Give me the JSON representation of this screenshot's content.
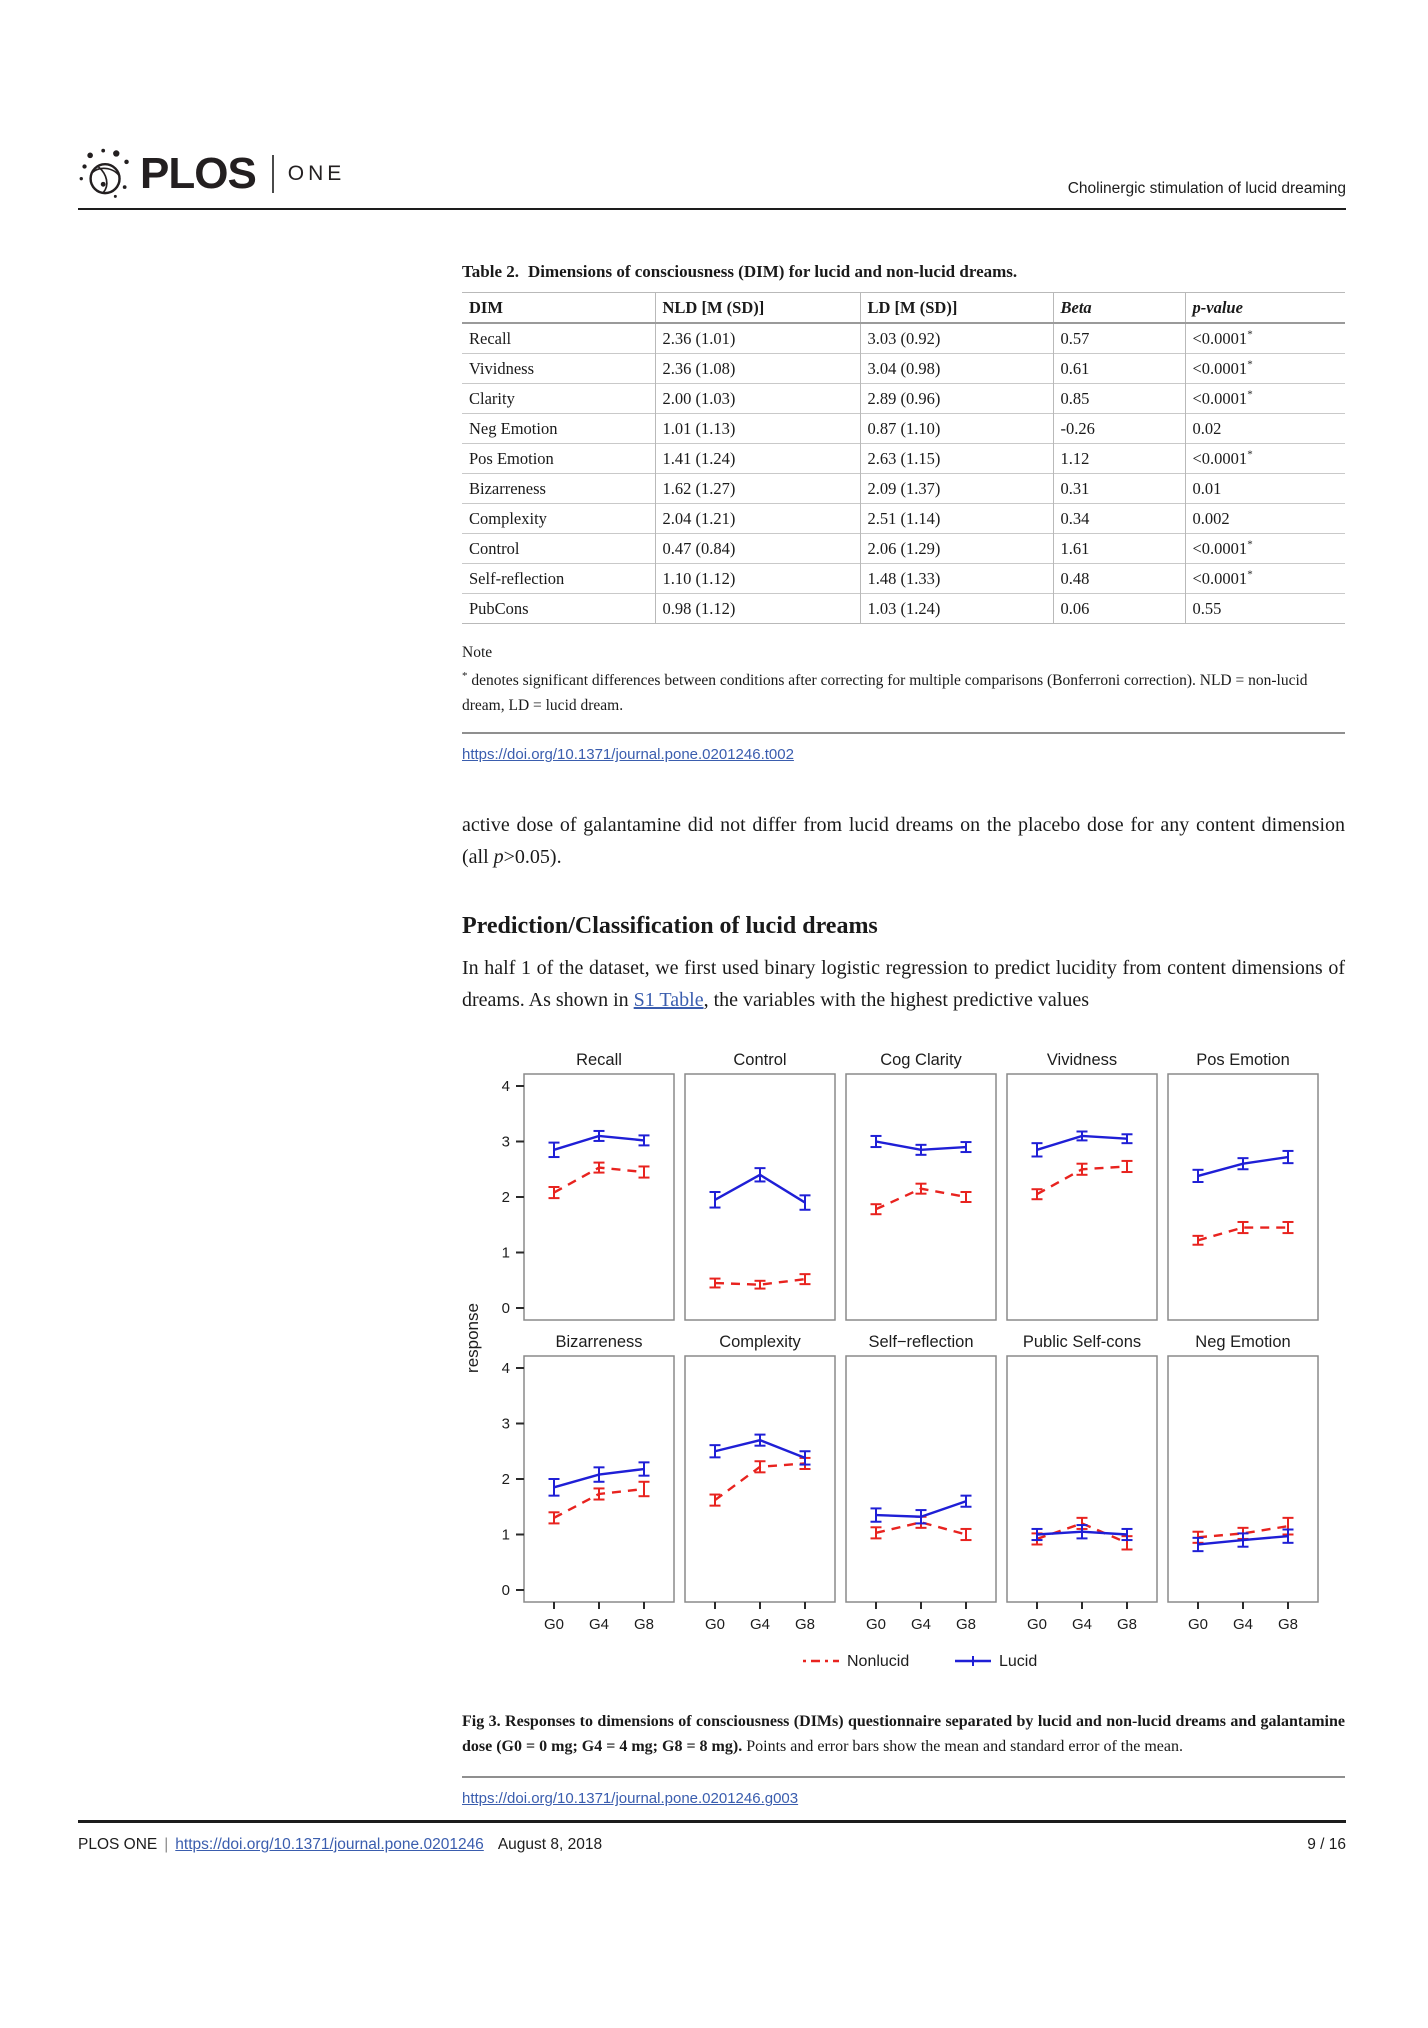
{
  "header": {
    "logo_plos": "PLOS",
    "logo_one": "ONE",
    "running_title": "Cholinergic stimulation of lucid dreaming"
  },
  "table": {
    "title_label": "Table 2.",
    "title_text": "Dimensions of consciousness (DIM) for lucid and non-lucid dreams.",
    "columns": [
      "DIM",
      "NLD [M (SD)]",
      "LD [M (SD)]",
      "Beta",
      "p-value"
    ],
    "rows": [
      [
        "Recall",
        "2.36 (1.01)",
        "3.03 (0.92)",
        "0.57",
        "<0.0001*"
      ],
      [
        "Vividness",
        "2.36 (1.08)",
        "3.04 (0.98)",
        "0.61",
        "<0.0001*"
      ],
      [
        "Clarity",
        "2.00 (1.03)",
        "2.89 (0.96)",
        "0.85",
        "<0.0001*"
      ],
      [
        "Neg Emotion",
        "1.01 (1.13)",
        "0.87 (1.10)",
        "-0.26",
        "0.02"
      ],
      [
        "Pos Emotion",
        "1.41 (1.24)",
        "2.63 (1.15)",
        "1.12",
        "<0.0001*"
      ],
      [
        "Bizarreness",
        "1.62 (1.27)",
        "2.09 (1.37)",
        "0.31",
        "0.01"
      ],
      [
        "Complexity",
        "2.04 (1.21)",
        "2.51 (1.14)",
        "0.34",
        "0.002"
      ],
      [
        "Control",
        "0.47 (0.84)",
        "2.06 (1.29)",
        "1.61",
        "<0.0001*"
      ],
      [
        "Self-reflection",
        "1.10 (1.12)",
        "1.48 (1.33)",
        "0.48",
        "<0.0001*"
      ],
      [
        "PubCons",
        "0.98 (1.12)",
        "1.03 (1.24)",
        "0.06",
        "0.55"
      ]
    ],
    "note_label": "Note",
    "note_star": "*",
    "note_text": " denotes significant differences between conditions after correcting for multiple comparisons (Bonferroni correction). NLD = non-lucid dream, LD = lucid dream.",
    "doi_link": "https://doi.org/10.1371/journal.pone.0201246.t002"
  },
  "body": {
    "para1_pre": "active dose of galantamine did not differ from lucid dreams on the placebo dose for any content dimension (all ",
    "para1_italic": "p",
    "para1_post": ">0.05).",
    "section_heading": "Prediction/Classification of lucid dreams",
    "para2_pre": "In half 1 of the dataset, we first used binary logistic regression to predict lucidity from content dimensions of dreams. As shown in ",
    "para2_link": "S1 Table",
    "para2_post": ", the variables with the highest predictive values"
  },
  "chart_data": {
    "type": "line",
    "x": [
      "G0",
      "G4",
      "G8"
    ],
    "ylabel": "response",
    "ylim": [
      0,
      4
    ],
    "yticks": [
      0,
      1,
      2,
      3,
      4
    ],
    "grid": false,
    "legend_position": "bottom",
    "legend": [
      {
        "name": "Nonlucid",
        "color": "#e8231f",
        "style": "dashed"
      },
      {
        "name": "Lucid",
        "color": "#1f1fd6",
        "style": "solid"
      }
    ],
    "panels": [
      {
        "title": "Recall",
        "series": [
          {
            "name": "Nonlucid",
            "values": [
              2.08,
              2.53,
              2.45
            ],
            "err": [
              0.1,
              0.09,
              0.1
            ]
          },
          {
            "name": "Lucid",
            "values": [
              2.85,
              3.1,
              3.02
            ],
            "err": [
              0.13,
              0.09,
              0.09
            ]
          }
        ]
      },
      {
        "title": "Control",
        "series": [
          {
            "name": "Nonlucid",
            "values": [
              0.45,
              0.42,
              0.52
            ],
            "err": [
              0.08,
              0.07,
              0.09
            ]
          },
          {
            "name": "Lucid",
            "values": [
              1.95,
              2.4,
              1.9
            ],
            "err": [
              0.14,
              0.12,
              0.13
            ]
          }
        ]
      },
      {
        "title": "Cog Clarity",
        "series": [
          {
            "name": "Nonlucid",
            "values": [
              1.78,
              2.15,
              2.0
            ],
            "err": [
              0.09,
              0.09,
              0.09
            ]
          },
          {
            "name": "Lucid",
            "values": [
              3.0,
              2.85,
              2.9
            ],
            "err": [
              0.1,
              0.09,
              0.09
            ]
          }
        ]
      },
      {
        "title": "Vividness",
        "series": [
          {
            "name": "Nonlucid",
            "values": [
              2.05,
              2.5,
              2.55
            ],
            "err": [
              0.09,
              0.1,
              0.1
            ]
          },
          {
            "name": "Lucid",
            "values": [
              2.85,
              3.1,
              3.05
            ],
            "err": [
              0.12,
              0.08,
              0.08
            ]
          }
        ]
      },
      {
        "title": "Pos Emotion",
        "series": [
          {
            "name": "Nonlucid",
            "values": [
              1.22,
              1.45,
              1.45
            ],
            "err": [
              0.08,
              0.1,
              0.1
            ]
          },
          {
            "name": "Lucid",
            "values": [
              2.38,
              2.6,
              2.72
            ],
            "err": [
              0.11,
              0.1,
              0.11
            ]
          }
        ]
      },
      {
        "title": "Bizarreness",
        "series": [
          {
            "name": "Nonlucid",
            "values": [
              1.3,
              1.73,
              1.82
            ],
            "err": [
              0.1,
              0.1,
              0.13
            ]
          },
          {
            "name": "Lucid",
            "values": [
              1.85,
              2.08,
              2.18
            ],
            "err": [
              0.15,
              0.13,
              0.12
            ]
          }
        ]
      },
      {
        "title": "Complexity",
        "series": [
          {
            "name": "Nonlucid",
            "values": [
              1.62,
              2.22,
              2.28
            ],
            "err": [
              0.1,
              0.1,
              0.1
            ]
          },
          {
            "name": "Lucid",
            "values": [
              2.5,
              2.7,
              2.38
            ],
            "err": [
              0.11,
              0.1,
              0.12
            ]
          }
        ]
      },
      {
        "title": "Self−reflection",
        "series": [
          {
            "name": "Nonlucid",
            "values": [
              1.03,
              1.22,
              1.0
            ],
            "err": [
              0.1,
              0.1,
              0.1
            ]
          },
          {
            "name": "Lucid",
            "values": [
              1.35,
              1.32,
              1.6
            ],
            "err": [
              0.12,
              0.12,
              0.1
            ]
          }
        ]
      },
      {
        "title": "Public Self-cons",
        "series": [
          {
            "name": "Nonlucid",
            "values": [
              0.92,
              1.2,
              0.85
            ],
            "err": [
              0.1,
              0.1,
              0.12
            ]
          },
          {
            "name": "Lucid",
            "values": [
              1.0,
              1.05,
              1.0
            ],
            "err": [
              0.1,
              0.12,
              0.1
            ]
          }
        ]
      },
      {
        "title": "Neg Emotion",
        "series": [
          {
            "name": "Nonlucid",
            "values": [
              0.95,
              1.02,
              1.15
            ],
            "err": [
              0.1,
              0.1,
              0.15
            ]
          },
          {
            "name": "Lucid",
            "values": [
              0.82,
              0.9,
              0.97
            ],
            "err": [
              0.12,
              0.12,
              0.12
            ]
          }
        ]
      }
    ]
  },
  "figure": {
    "caption_bold": "Fig 3. Responses to dimensions of consciousness (DIMs) questionnaire separated by lucid and non-lucid dreams and galantamine dose (G0 = 0 mg; G4 = 4 mg; G8 = 8 mg).",
    "caption_rest": " Points and error bars show the mean and standard error of the mean.",
    "doi_link": "https://doi.org/10.1371/journal.pone.0201246.g003"
  },
  "footer": {
    "journal": "PLOS ONE",
    "separator": "|",
    "doi_link": "https://doi.org/10.1371/journal.pone.0201246",
    "date": "August 8, 2018",
    "page": "9 / 16"
  },
  "colors": {
    "lucid_blue": "#1f1fd6",
    "nonlucid_red": "#e8231f",
    "link_blue": "#3a5dae"
  }
}
